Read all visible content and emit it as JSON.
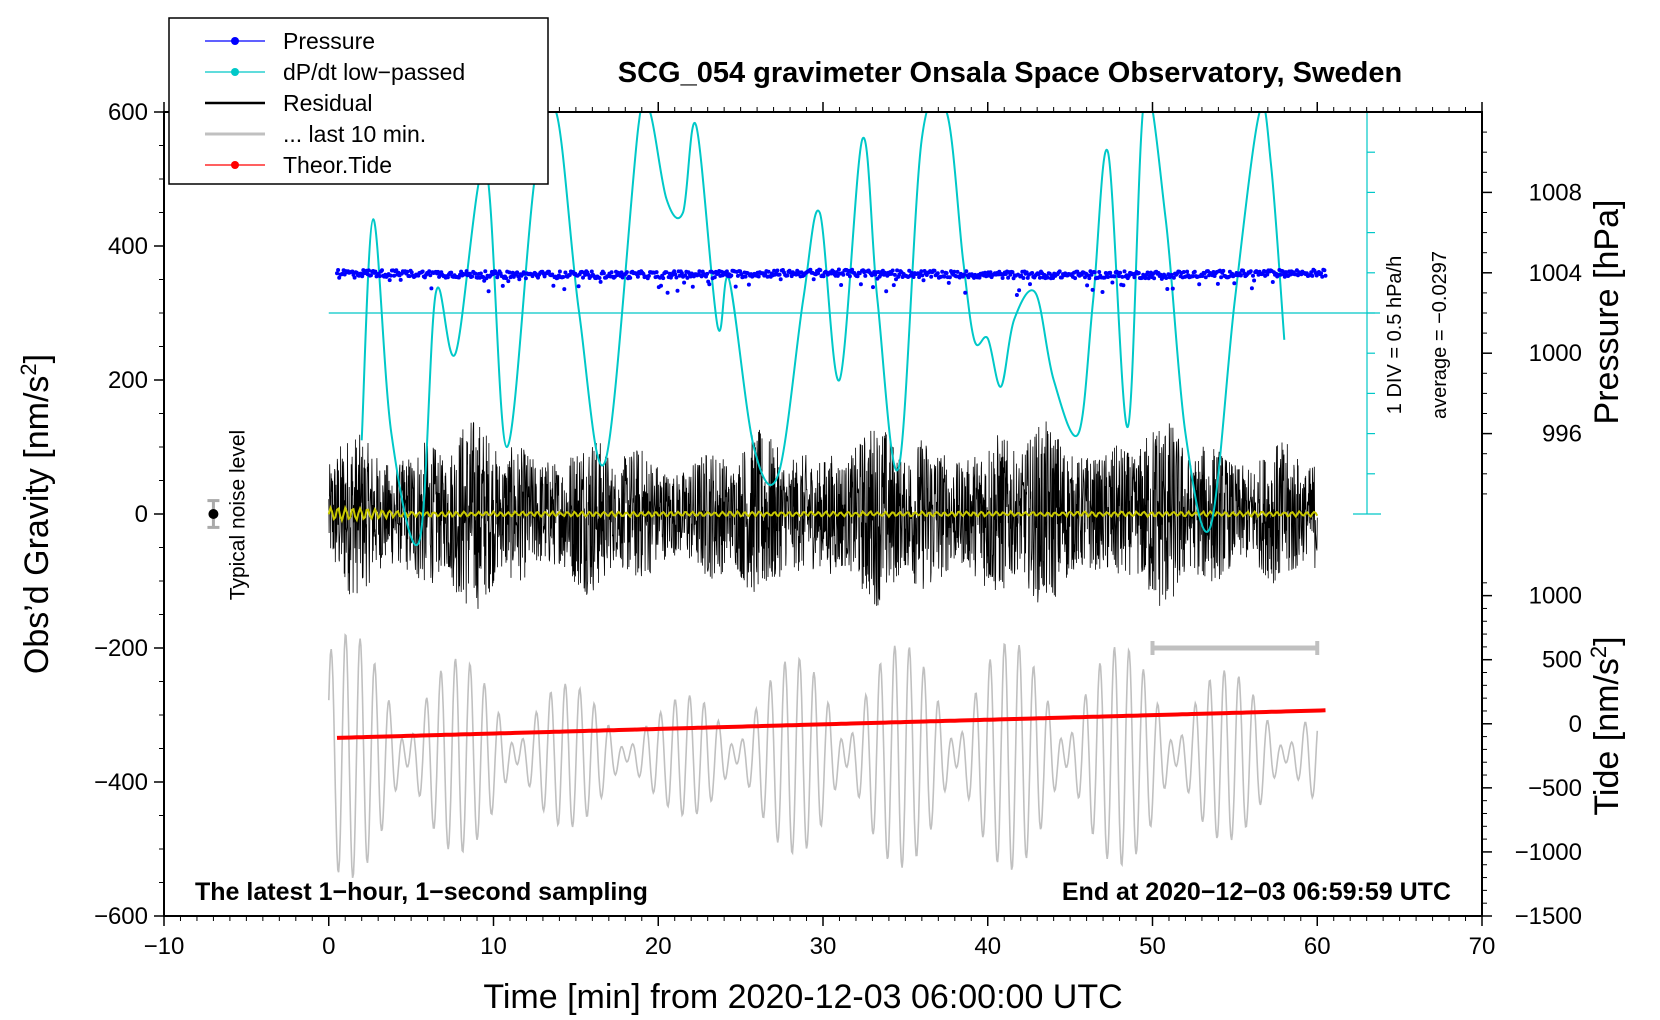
{
  "chart_data": {
    "type": "line",
    "title": "SCG_054 gravimeter Onsala Space Observatory, Sweden",
    "xlabel": "Time [min] from 2020-12-03 06:00:00 UTC",
    "ylabel_prefix": "Obs’d Gravity [nm/s",
    "ylabel_sup": "2",
    "ylabel_suffix": "]",
    "y2label": "Pressure [hPa]",
    "y3label_prefix": "Tide [nm/s",
    "y3label_sup": "2",
    "y3label_suffix": "]",
    "xlim": [
      -10,
      70
    ],
    "ylim": [
      -600,
      600
    ],
    "x_ticks": [
      -10,
      0,
      10,
      20,
      30,
      40,
      50,
      60,
      70
    ],
    "x_tick_labels": [
      "−10",
      "0",
      "10",
      "20",
      "30",
      "40",
      "50",
      "60",
      "70"
    ],
    "y_ticks": [
      -600,
      -400,
      -200,
      0,
      200,
      400,
      600
    ],
    "y_tick_labels": [
      "−600",
      "−400",
      "−200",
      "0",
      "200",
      "400",
      "600"
    ],
    "pressure_axis": {
      "ticks": [
        996,
        1000,
        1004,
        1008
      ],
      "tick_labels": [
        "996",
        "1000",
        "1004",
        "1008"
      ],
      "range": [
        992.0,
        1012.0
      ]
    },
    "tide_axis": {
      "ticks": [
        -1500,
        -1000,
        -500,
        0,
        500,
        1000
      ],
      "tick_labels": [
        "−1500",
        "−1000",
        "−500",
        "0",
        "500",
        "1000"
      ],
      "range": [
        -1500,
        1200
      ]
    },
    "dpdt_scale": {
      "label": "1 DIV = 0.5 hPa/h",
      "average_label": "average = −0.0297",
      "baseline_pressure": 1002.0,
      "divisions": 10
    },
    "noise": {
      "label": "Typical noise level",
      "x": -7,
      "y": 0,
      "err": 20
    },
    "last10_bar": {
      "x_start": 50,
      "x_end": 60,
      "y": -200
    },
    "legend": [
      {
        "label": "Pressure",
        "color": "#0000ff",
        "marker": true
      },
      {
        "label": "dP/dt low−passed",
        "color": "#00c8c8",
        "marker": true
      },
      {
        "label": "Residual",
        "color": "#000000",
        "marker": false
      },
      {
        "label": "... last 10 min.",
        "color": "#c0c0c0",
        "marker": false
      },
      {
        "label": "Theor.Tide",
        "color": "#ff0000",
        "marker": true
      }
    ],
    "series": [
      {
        "name": "Pressure",
        "axis": "pressure",
        "color": "#0000ff",
        "approx": "noisy around 1003.9 hPa, slight dip near 1003.5",
        "x": [
          0.5,
          10,
          20,
          30,
          40,
          50,
          60.5
        ],
        "values": [
          1004.0,
          1003.9,
          1003.9,
          1004.0,
          1003.9,
          1003.9,
          1004.0
        ]
      },
      {
        "name": "dP/dt low-passed",
        "axis": "gravity_units_plot",
        "color": "#00c8c8",
        "x": [
          2.0,
          2.7,
          3.8,
          5.5,
          6.5,
          7.7,
          9.5,
          10.8,
          12.5,
          13.8,
          15.2,
          16.8,
          18.8,
          19.5,
          20.5,
          21.5,
          22.3,
          23.6,
          24.3,
          25.8,
          27.3,
          28.8,
          29.8,
          31.0,
          32.4,
          33.3,
          34.6,
          36.0,
          37.5,
          38.5,
          39.2,
          40.0,
          40.8,
          41.6,
          42.9,
          44.0,
          45.5,
          46.4,
          47.3,
          48.5,
          49.5,
          50.8,
          52.0,
          53.5,
          55.0,
          56.5,
          57.2,
          58.0
        ],
        "values": [
          110,
          440,
          120,
          -40,
          330,
          240,
          520,
          100,
          500,
          600,
          300,
          80,
          580,
          600,
          470,
          450,
          580,
          280,
          350,
          100,
          60,
          320,
          450,
          200,
          560,
          320,
          70,
          560,
          600,
          380,
          258,
          262,
          190,
          290,
          330,
          200,
          120,
          320,
          540,
          130,
          620,
          440,
          120,
          -20,
          320,
          600,
          520,
          260
        ]
      },
      {
        "name": "Residual",
        "axis": "gravity",
        "color": "#000000",
        "approx": "dense 1-s noise, envelope roughly ±120 nm/s², peaks to ±200",
        "x": [
          0,
          10,
          20,
          30,
          40,
          50,
          60
        ],
        "envelope": [
          130,
          150,
          110,
          140,
          140,
          150,
          110
        ]
      },
      {
        "name": "... last 10 min.",
        "axis": "tide",
        "color": "#c0c0c0",
        "approx": "oscillation amplitude ~600-1000 nm/s² around -250",
        "x": [
          0,
          10,
          20,
          30,
          40,
          50,
          60
        ],
        "envelope": [
          1000,
          700,
          400,
          850,
          900,
          850,
          450
        ]
      },
      {
        "name": "Theor.Tide",
        "axis": "tide",
        "color": "#ff0000",
        "x": [
          0.5,
          60.5
        ],
        "values": [
          -110,
          105
        ]
      },
      {
        "name": "Smoothed residual",
        "axis": "gravity",
        "color": "#c8c800",
        "x": [
          0,
          5,
          60
        ],
        "values": [
          0,
          0,
          0
        ]
      }
    ],
    "annotations": [
      {
        "text": "The latest 1−hour, 1−second sampling",
        "position": "bottom-left"
      },
      {
        "text": "End at 2020−12−03 06:59:59 UTC",
        "position": "bottom-right"
      }
    ]
  }
}
